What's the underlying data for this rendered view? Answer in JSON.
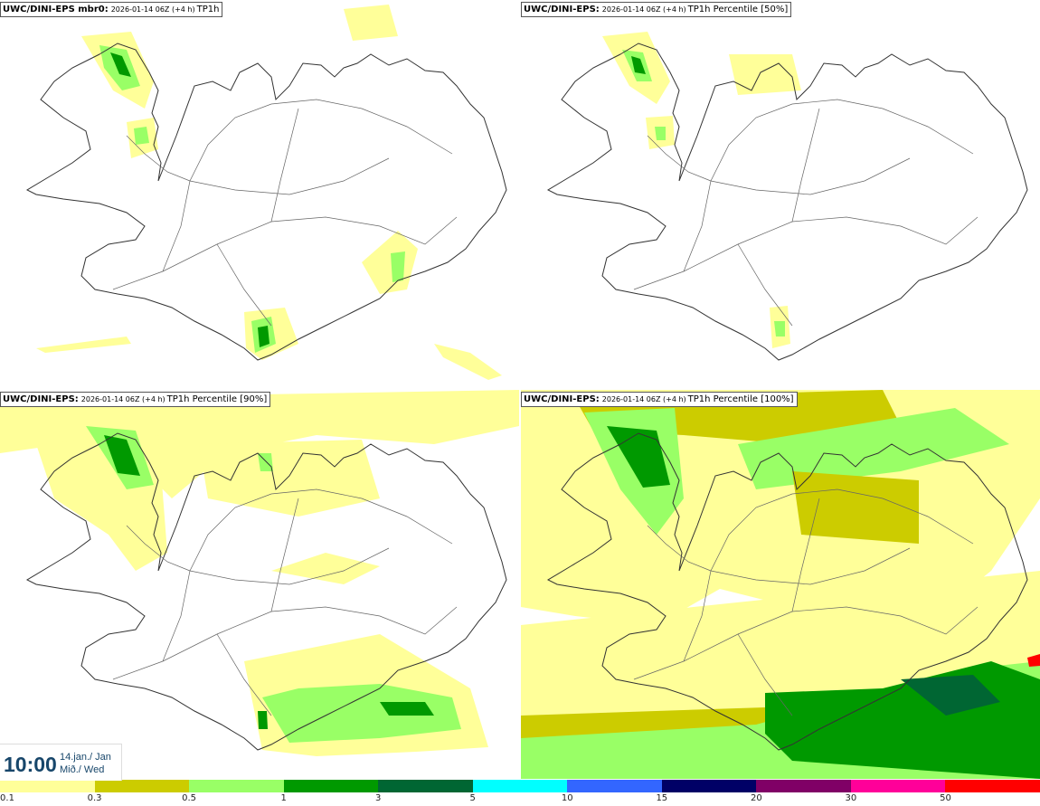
{
  "panels": [
    {
      "model": "UWC/DINI-EPS mbr0:",
      "run": "2026-01-14 06Z (+4 h)",
      "field": "TP1h",
      "key": "mbr0"
    },
    {
      "model": "UWC/DINI-EPS:",
      "run": "2026-01-14 06Z (+4 h)",
      "field": "TP1h Percentile [50%]",
      "key": "p50"
    },
    {
      "model": "UWC/DINI-EPS:",
      "run": "2026-01-14 06Z (+4 h)",
      "field": "TP1h Percentile [90%]",
      "key": "p90"
    },
    {
      "model": "UWC/DINI-EPS:",
      "run": "2026-01-14 06Z (+4 h)",
      "field": "TP1h Percentile [100%]",
      "key": "p100"
    }
  ],
  "time": {
    "clock": "10:00",
    "date_line": "14.jan./ Jan",
    "day_line": "Mið./ Wed"
  },
  "colorbar": {
    "colors": [
      "#ffff99",
      "#cccc00",
      "#99ff66",
      "#009900",
      "#006633",
      "#00ffff",
      "#3366ff",
      "#000066",
      "#800066",
      "#ff0099",
      "#ff0000"
    ],
    "labels": [
      "0.1",
      "0.3",
      "0.5",
      "1",
      "3",
      "5",
      "10",
      "15",
      "20",
      "30",
      "50"
    ]
  },
  "map_colors": {
    "coast": "#333333",
    "road": "#666666"
  }
}
